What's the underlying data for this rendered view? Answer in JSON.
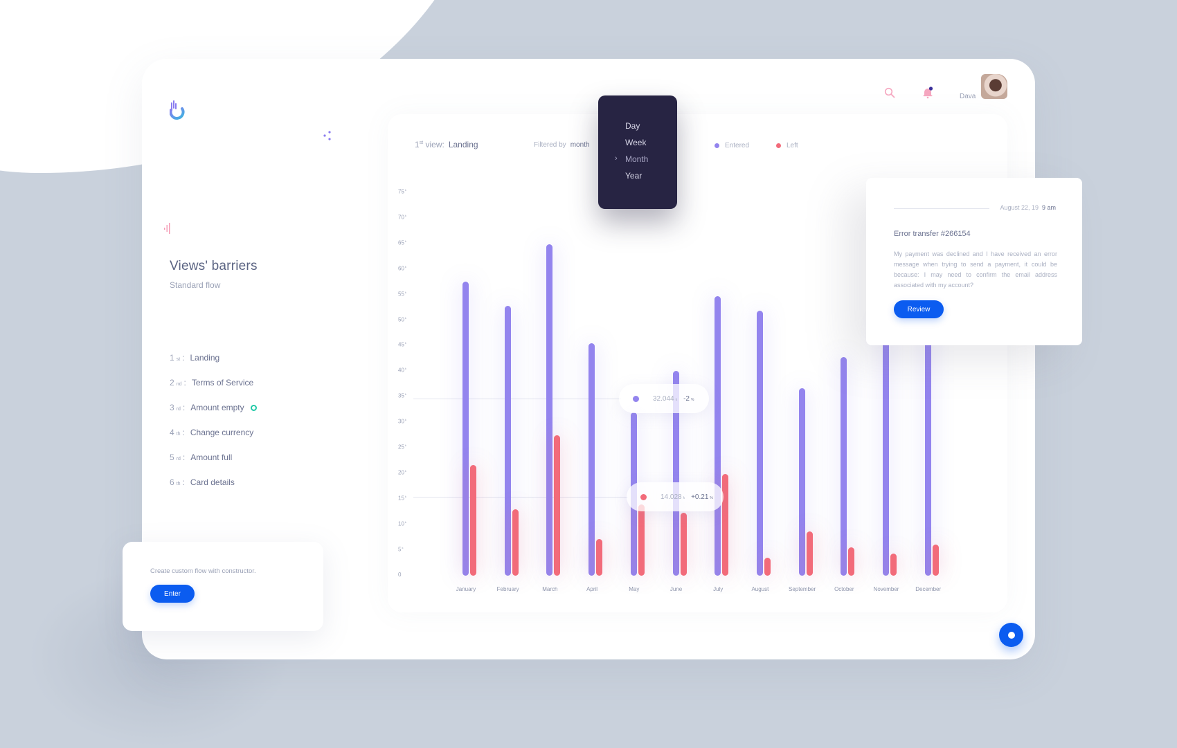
{
  "app": {
    "brand_colors": {
      "primary": "#0b5cf0",
      "entered": "#9384ee",
      "left": "#f26b7a",
      "dropdown_bg": "#272443",
      "success": "#22c9a7"
    }
  },
  "header": {
    "user_name": "Dava",
    "icons": [
      "search-icon",
      "bell-icon",
      "avatar"
    ]
  },
  "sidebar": {
    "title": "Views' barriers",
    "subtitle": "Standard flow",
    "steps": [
      {
        "num": "1",
        "suffix": "st",
        "label": "Landing",
        "marker": false
      },
      {
        "num": "2",
        "suffix": "nd",
        "label": "Terms of Service",
        "marker": false
      },
      {
        "num": "3",
        "suffix": "rd",
        "label": "Amount empty",
        "marker": true
      },
      {
        "num": "4",
        "suffix": "th",
        "label": "Change currency",
        "marker": false
      },
      {
        "num": "5",
        "suffix": "rd",
        "label": "Amount full",
        "marker": false
      },
      {
        "num": "6",
        "suffix": "th",
        "label": "Card details",
        "marker": false
      }
    ]
  },
  "promo": {
    "text": "Create custom flow with constructor.",
    "button_label": "Enter"
  },
  "chart_header": {
    "view_num": "1",
    "view_suffix": "st",
    "view_prefix": " view:",
    "view_value": "Landing",
    "filter_label": "Filtered by",
    "filter_value": "month"
  },
  "dropdown": {
    "options": [
      "Day",
      "Week",
      "Month",
      "Year"
    ],
    "selected": "Month",
    "chevron": "›"
  },
  "legend": [
    {
      "label": "Entered",
      "color": "#9384ee"
    },
    {
      "label": "Left",
      "color": "#f26b7a"
    }
  ],
  "tooltips": [
    {
      "value": "32.044",
      "unit": "k",
      "delta": "-2",
      "delta_unit": "%",
      "series": "Entered",
      "month": "May"
    },
    {
      "value": "14.028",
      "unit": "k",
      "delta": "+0.21",
      "delta_unit": "%",
      "series": "Left",
      "month": "May"
    }
  ],
  "notification": {
    "date": "August 22, 19",
    "time": "9 am",
    "title": "Error transfer #266154",
    "body": "My payment was declined and I have received an error message when trying to send a payment, it could be because: I may need to confirm the email address associated with my account?",
    "button_label": "Review"
  },
  "chart_data": {
    "type": "bar",
    "title": "Views' barriers",
    "subtitle": "1st view: Landing — Filtered by month",
    "categories": [
      "January",
      "February",
      "March",
      "April",
      "May",
      "June",
      "July",
      "August",
      "September",
      "October",
      "November",
      "December"
    ],
    "series": [
      {
        "name": "Entered",
        "color": "#9384ee",
        "values": [
          57.5,
          52.8,
          64.8,
          45.5,
          32.0,
          40.0,
          54.7,
          51.8,
          36.7,
          42.8,
          50.0,
          50.0
        ]
      },
      {
        "name": "Left",
        "color": "#f26b7a",
        "values": [
          21.7,
          13.0,
          27.5,
          7.2,
          14.0,
          12.3,
          19.9,
          3.5,
          8.7,
          5.5,
          4.3,
          6.1
        ]
      }
    ],
    "xlabel": "",
    "ylabel": "",
    "y_unit": "k",
    "yticks": [
      "0",
      "5",
      "10",
      "15",
      "20",
      "25",
      "30",
      "35",
      "40",
      "45",
      "50",
      "55",
      "60",
      "65",
      "70",
      "75"
    ],
    "ylim": [
      0,
      75
    ],
    "grid": false,
    "legend_position": "top",
    "annotations": [
      "32.044k -2%",
      "14.028k +0.21%"
    ]
  }
}
